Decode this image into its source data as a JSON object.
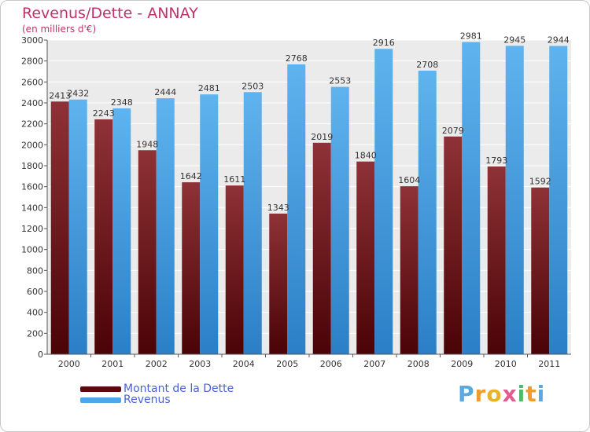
{
  "chart_data": {
    "type": "bar",
    "title": "Revenus/Dette - ANNAY",
    "subtitle": "(en milliers d'€)",
    "categories": [
      "2000",
      "2001",
      "2002",
      "2003",
      "2004",
      "2005",
      "2006",
      "2007",
      "2008",
      "2009",
      "2010",
      "2011"
    ],
    "series": [
      {
        "name": "Montant de la Dette",
        "color": "#7a1f22",
        "values": [
          2413,
          2243,
          1948,
          1642,
          1611,
          1343,
          2019,
          1840,
          1604,
          2079,
          1793,
          1592
        ]
      },
      {
        "name": "Revenus",
        "color": "#4ea6e6",
        "values": [
          2432,
          2348,
          2444,
          2481,
          2503,
          2768,
          2553,
          2916,
          2708,
          2981,
          2945,
          2944
        ]
      }
    ],
    "ylim": [
      0,
      3000
    ],
    "yticks": [
      0,
      200,
      400,
      600,
      800,
      1000,
      1200,
      1400,
      1600,
      1800,
      2000,
      2200,
      2400,
      2600,
      2800,
      3000
    ],
    "grid": true,
    "legend_position": "bottom-left"
  },
  "logo_text": "Proxiti"
}
